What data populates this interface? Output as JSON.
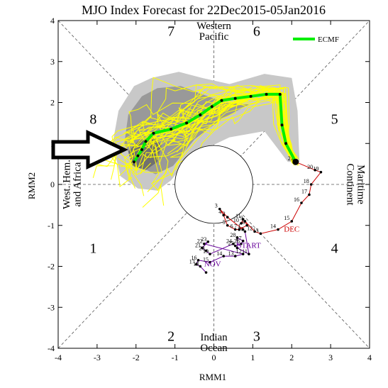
{
  "chart_data": {
    "type": "line",
    "title": "MJO Index Forecast for 22Dec2015-05Jan2016",
    "xlabel": "RMM1",
    "ylabel": "RMM2",
    "xlim": [
      -4,
      4
    ],
    "ylim": [
      -4,
      4
    ],
    "xticks": [
      "-4",
      "-3",
      "-2",
      "-1",
      "0",
      "1",
      "2",
      "3",
      "4"
    ],
    "yticks": [
      "-4",
      "-3",
      "-2",
      "-1",
      "0",
      "1",
      "2",
      "3",
      "4"
    ],
    "grid": "dashed octant lines",
    "legend_position": "top-right",
    "phase_labels": [
      {
        "text": "1",
        "x": -3.1,
        "y": -1.55
      },
      {
        "text": "2",
        "x": -1.1,
        "y": -3.7
      },
      {
        "text": "3",
        "x": 1.1,
        "y": -3.7
      },
      {
        "text": "4",
        "x": 3.1,
        "y": -1.55
      },
      {
        "text": "5",
        "x": 3.1,
        "y": 1.6
      },
      {
        "text": "6",
        "x": 1.1,
        "y": 3.75
      },
      {
        "text": "7",
        "x": -1.1,
        "y": 3.75
      },
      {
        "text": "8",
        "x": -3.1,
        "y": 1.6
      }
    ],
    "region_labels": [
      {
        "lines": [
          "Western",
          "Pacific"
        ],
        "x": 0,
        "y": 3.75,
        "rotate": 0
      },
      {
        "lines": [
          "Indian",
          "Ocean"
        ],
        "x": 0,
        "y": -3.85,
        "rotate": 0
      },
      {
        "lines": [
          "Maritime",
          "Continent"
        ],
        "x": 3.65,
        "y": 0,
        "rotate": 90
      },
      {
        "lines": [
          "West. Hem.",
          "and Africa"
        ],
        "x": -3.65,
        "y": 0,
        "rotate": -90
      }
    ],
    "legend": [
      {
        "name": "ECMF",
        "color": "#00ee00"
      }
    ],
    "colors": {
      "ensemble": "#ffff00",
      "spread_outer": "#c8c8c8",
      "spread_middle": "#999999",
      "spread_inner": "#707070",
      "ensemble_mean": "#00ee00",
      "obs_dec": "#cc0000",
      "obs_nov": "#660099",
      "points": "#000000",
      "arrow_outline": "#000000",
      "arrow_fill": "#ffffff"
    },
    "observed_nov": {
      "label": "NOV",
      "start_label": "START",
      "points": [
        {
          "label": "",
          "x": -0.2,
          "y": -2.15
        },
        {
          "label": "18",
          "x": -0.35,
          "y": -2.0
        },
        {
          "label": "17",
          "x": -0.45,
          "y": -1.95
        },
        {
          "label": "16",
          "x": -0.4,
          "y": -1.85
        },
        {
          "label": "15",
          "x": -0.1,
          "y": -1.9
        },
        {
          "label": "14",
          "x": 0.25,
          "y": -1.75
        },
        {
          "label": "13",
          "x": 0.55,
          "y": -1.75
        },
        {
          "label": "12",
          "x": 0.75,
          "y": -1.7
        },
        {
          "label": "22",
          "x": -0.25,
          "y": -1.45
        },
        {
          "label": "23",
          "x": -0.15,
          "y": -1.4
        },
        {
          "label": "21",
          "x": -0.3,
          "y": -1.55
        },
        {
          "label": "20",
          "x": -0.2,
          "y": -1.62
        },
        {
          "label": "19",
          "x": -0.1,
          "y": -1.7
        },
        {
          "label": "24",
          "x": 0.5,
          "y": -1.45
        },
        {
          "label": "25",
          "x": 0.55,
          "y": -1.5
        },
        {
          "label": "26",
          "x": 0.7,
          "y": -1.45
        },
        {
          "label": "27",
          "x": 0.75,
          "y": -1.38
        },
        {
          "label": "28",
          "x": 0.6,
          "y": -1.3
        },
        {
          "label": "",
          "x": 0.6,
          "y": -1.55
        },
        {
          "label": "11",
          "x": 0.9,
          "y": -1.7
        },
        {
          "label": "30",
          "x": 0.8,
          "y": -1.15
        }
      ]
    },
    "observed_dec": {
      "label": "DEC",
      "points": [
        {
          "label": "1",
          "x": 0.75,
          "y": -1.1
        },
        {
          "label": "2",
          "x": 0.35,
          "y": -0.8
        },
        {
          "label": "3",
          "x": 0.15,
          "y": -0.6
        },
        {
          "label": "4",
          "x": 0.25,
          "y": -0.75
        },
        {
          "label": "5",
          "x": 0.35,
          "y": -1.0
        },
        {
          "label": "6",
          "x": 0.55,
          "y": -1.1
        },
        {
          "label": "7",
          "x": 0.65,
          "y": -1.1
        },
        {
          "label": "8",
          "x": 0.85,
          "y": -1.0
        },
        {
          "label": "9",
          "x": 0.8,
          "y": -0.9
        },
        {
          "label": "10",
          "x": 0.7,
          "y": -0.95
        },
        {
          "label": "11",
          "x": 0.75,
          "y": -0.85
        },
        {
          "label": "12",
          "x": 1.05,
          "y": -1.15
        },
        {
          "label": "13",
          "x": 1.2,
          "y": -1.2
        },
        {
          "label": "14",
          "x": 1.65,
          "y": -1.1
        },
        {
          "label": "15",
          "x": 2.0,
          "y": -0.9
        },
        {
          "label": "16",
          "x": 2.25,
          "y": -0.45
        },
        {
          "label": "17",
          "x": 2.45,
          "y": -0.25
        },
        {
          "label": "18",
          "x": 2.5,
          "y": 0.0
        },
        {
          "label": "19",
          "x": 2.75,
          "y": 0.3
        },
        {
          "label": "20",
          "x": 2.6,
          "y": 0.35
        },
        {
          "label": "21",
          "x": 2.1,
          "y": 0.55
        }
      ]
    },
    "ensemble_mean": {
      "name": "ECMF",
      "points": [
        [
          2.1,
          0.55
        ],
        [
          1.85,
          1.0
        ],
        [
          1.75,
          1.45
        ],
        [
          1.7,
          2.2
        ],
        [
          1.35,
          2.2
        ],
        [
          0.95,
          2.15
        ],
        [
          0.55,
          2.1
        ],
        [
          0.2,
          2.05
        ],
        [
          -0.05,
          1.9
        ],
        [
          -0.35,
          1.7
        ],
        [
          -0.7,
          1.5
        ],
        [
          -1.1,
          1.35
        ],
        [
          -1.55,
          1.25
        ],
        [
          -1.75,
          1.05
        ],
        [
          -1.85,
          0.85
        ],
        [
          -1.95,
          0.7
        ],
        [
          -2.05,
          0.55
        ]
      ]
    },
    "spread": {
      "outer": [
        [
          -1.6,
          2.6
        ],
        [
          -0.9,
          2.75
        ],
        [
          -0.3,
          2.6
        ],
        [
          0.4,
          2.45
        ],
        [
          1.3,
          2.7
        ],
        [
          2.0,
          2.6
        ],
        [
          2.15,
          1.8
        ],
        [
          2.2,
          0.55
        ],
        [
          1.9,
          0.55
        ],
        [
          1.3,
          1.3
        ],
        [
          0.4,
          1.15
        ],
        [
          -0.6,
          0.7
        ],
        [
          -1.1,
          0.1
        ],
        [
          -1.45,
          -0.15
        ],
        [
          -1.95,
          -0.1
        ],
        [
          -2.4,
          0.2
        ],
        [
          -2.6,
          1.0
        ],
        [
          -2.45,
          1.8
        ],
        [
          -2.05,
          2.4
        ]
      ],
      "middle": [
        [
          -1.45,
          2.35
        ],
        [
          -0.85,
          2.4
        ],
        [
          -0.3,
          2.2
        ],
        [
          0.3,
          2.0
        ],
        [
          0.9,
          1.95
        ],
        [
          0.2,
          1.6
        ],
        [
          -0.5,
          1.1
        ],
        [
          -1.05,
          0.45
        ],
        [
          -1.5,
          0.25
        ],
        [
          -2.05,
          0.5
        ],
        [
          -2.3,
          1.0
        ],
        [
          -2.2,
          1.7
        ],
        [
          -1.85,
          2.15
        ]
      ],
      "inner": [
        [
          -1.95,
          1.05
        ],
        [
          -1.55,
          1.2
        ],
        [
          -1.35,
          0.95
        ],
        [
          -1.45,
          0.55
        ],
        [
          -1.75,
          0.35
        ],
        [
          -2.1,
          0.45
        ],
        [
          -2.2,
          0.8
        ]
      ]
    }
  }
}
